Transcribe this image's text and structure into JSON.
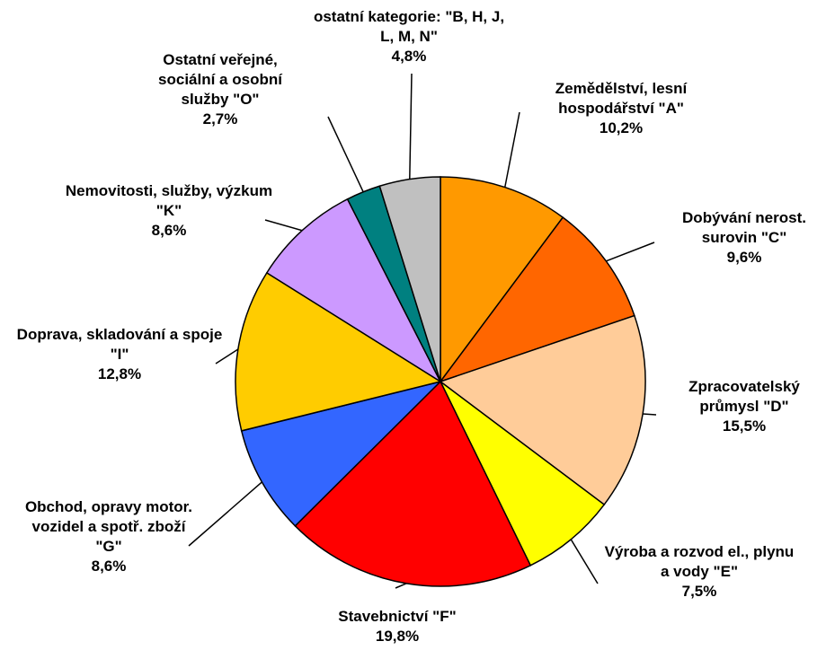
{
  "chart_data": {
    "type": "pie",
    "categories": [
      "Zemědělství, lesní hospodářství \"A\"",
      "Dobývání nerost. surovin \"C\"",
      "Zpracovatelský průmysl \"D\"",
      "Výroba a rozvod el., plynu a vody \"E\"",
      "Stavebnictví \"F\"",
      "Obchod, opravy motor. vozidel a spotř. zboží \"G\"",
      "Doprava, skladování a spoje \"I\"",
      "Nemovitosti, služby, výzkum \"K\"",
      "Ostatní veřejné, sociální a osobní služby \"O\"",
      "ostatní kategorie: \"B, H, J, L, M, N\""
    ],
    "values": [
      10.2,
      9.6,
      15.5,
      7.5,
      19.8,
      8.6,
      12.8,
      8.6,
      2.7,
      4.8
    ],
    "value_labels": [
      "10,2%",
      "9,6%",
      "15,5%",
      "7,5%",
      "19,8%",
      "8,6%",
      "12,8%",
      "8,6%",
      "2,7%",
      "4,8%"
    ],
    "colors": [
      "#ff9900",
      "#ff6600",
      "#ffcc99",
      "#ffff00",
      "#ff0000",
      "#3366ff",
      "#ffcc00",
      "#cc99ff",
      "#008080",
      "#c0c0c0"
    ]
  }
}
